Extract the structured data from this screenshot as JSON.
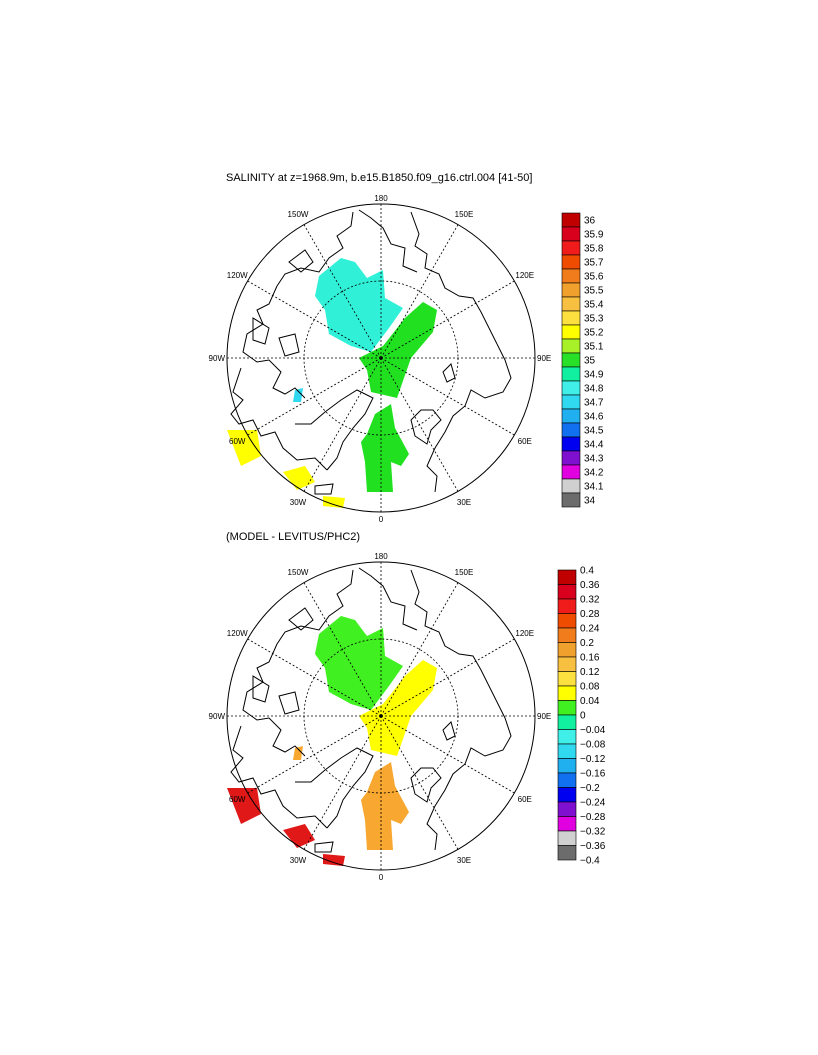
{
  "panels": [
    {
      "title": "SALINITY at z=1968.9m, b.e15.B1850.f09_g16.ctrl.004 [41-50]",
      "lon_labels": [
        "180",
        "150E",
        "120E",
        "90E",
        "60E",
        "30E",
        "0",
        "30W",
        "60W",
        "90W",
        "120W",
        "150W"
      ],
      "colorbar": {
        "labels": [
          "36",
          "35.9",
          "35.8",
          "35.7",
          "35.6",
          "35.5",
          "35.4",
          "35.3",
          "35.2",
          "35.1",
          "35",
          "34.9",
          "34.8",
          "34.7",
          "34.6",
          "34.5",
          "34.4",
          "34.3",
          "34.2",
          "34.1",
          "34"
        ],
        "colors": [
          "#c00000",
          "#d8001c",
          "#f01c1c",
          "#f04c00",
          "#f07c1c",
          "#f0a02c",
          "#f8c040",
          "#fce040",
          "#ffff00",
          "#a8f028",
          "#28e028",
          "#10f0a0",
          "#40f0e8",
          "#30d8f0",
          "#20b0f0",
          "#1070f0",
          "#0000f0",
          "#8010d0",
          "#e000e0",
          "#d0d0d0",
          "#6c6c6c"
        ]
      },
      "regions": [
        {
          "name": "canada-basin-patch",
          "fill": "#30f0d8"
        },
        {
          "name": "eurasian-basin-patch",
          "fill": "#20e020"
        },
        {
          "name": "fram-strait-patch",
          "fill": "#20e020"
        },
        {
          "name": "labrador-sea-patch",
          "fill": "#ffff00"
        },
        {
          "name": "iceland-patch",
          "fill": "#ffff00"
        },
        {
          "name": "norwegian-patch",
          "fill": "#ffff00"
        },
        {
          "name": "baffin-patch",
          "fill": "#30d8f0"
        }
      ]
    },
    {
      "title": "(MODEL - LEVITUS/PHC2)",
      "lon_labels": [
        "180",
        "150E",
        "120E",
        "90E",
        "60E",
        "30E",
        "0",
        "30W",
        "60W",
        "90W",
        "120W",
        "150W"
      ],
      "colorbar": {
        "labels": [
          "0.4",
          "0.36",
          "0.32",
          "0.28",
          "0.24",
          "0.2",
          "0.16",
          "0.12",
          "0.08",
          "0.04",
          "0",
          "−0.04",
          "−0.08",
          "−0.12",
          "−0.16",
          "−0.2",
          "−0.24",
          "−0.28",
          "−0.32",
          "−0.36",
          "−0.4"
        ],
        "colors": [
          "#c00000",
          "#d8001c",
          "#f01c1c",
          "#f04c00",
          "#f07c1c",
          "#f0a02c",
          "#f8c040",
          "#fce040",
          "#ffff00",
          "#40f020",
          "#10f0a0",
          "#40f0e8",
          "#30d8f0",
          "#20b0f0",
          "#1070f0",
          "#0000f0",
          "#8010d0",
          "#e000e0",
          "#d0d0d0",
          "#6c6c6c"
        ]
      },
      "regions": [
        {
          "name": "canada-basin-patch",
          "fill": "#40f020"
        },
        {
          "name": "eurasian-basin-patch",
          "fill": "#ffff00"
        },
        {
          "name": "fram-strait-patch",
          "fill": "#f8a830"
        },
        {
          "name": "labrador-sea-patch",
          "fill": "#e01818"
        },
        {
          "name": "iceland-patch",
          "fill": "#e01818"
        },
        {
          "name": "norwegian-patch",
          "fill": "#e01818"
        },
        {
          "name": "baffin-patch",
          "fill": "#f8a830"
        }
      ]
    }
  ]
}
